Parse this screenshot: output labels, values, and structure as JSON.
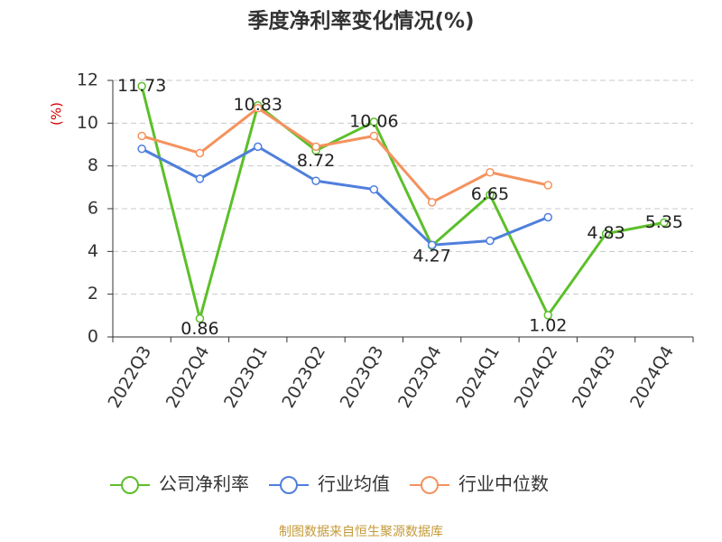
{
  "chart_data": {
    "type": "line",
    "title": "季度净利率变化情况(%)",
    "y_label": "(%)",
    "source": "制图数据来自恒生聚源数据库",
    "categories": [
      "2022Q3",
      "2022Q4",
      "2023Q1",
      "2023Q2",
      "2023Q3",
      "2023Q4",
      "2024Q1",
      "2024Q2",
      "2024Q3",
      "2024Q4"
    ],
    "series": [
      {
        "name": "公司净利率",
        "color": "#5cbf2a",
        "values": [
          11.73,
          0.86,
          10.83,
          8.72,
          10.06,
          4.27,
          6.65,
          1.02,
          4.83,
          5.35
        ],
        "data_labels": true
      },
      {
        "name": "行业均值",
        "color": "#4f7fdc",
        "values": [
          8.8,
          7.4,
          8.9,
          7.3,
          6.9,
          4.3,
          4.5,
          5.6,
          null,
          null
        ],
        "data_labels": false
      },
      {
        "name": "行业中位数",
        "color": "#f4925e",
        "values": [
          9.4,
          8.6,
          10.7,
          8.9,
          9.4,
          6.3,
          7.7,
          7.1,
          null,
          null
        ],
        "data_labels": false
      }
    ],
    "ylim": [
      0,
      12
    ],
    "yticks": [
      0,
      2,
      4,
      6,
      8,
      10,
      12
    ],
    "grid": true
  }
}
